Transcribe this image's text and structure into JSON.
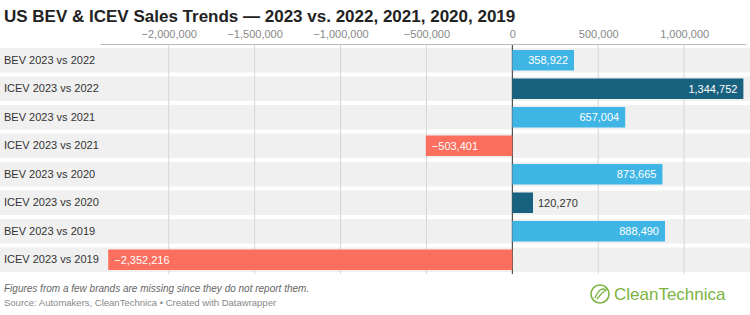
{
  "chart_data": {
    "type": "bar",
    "orientation": "horizontal",
    "title": "US BEV & ICEV Sales Trends — 2023 vs. 2022, 2021, 2020, 2019",
    "categories": [
      "BEV 2023 vs 2022",
      "ICEV 2023 vs 2022",
      "BEV 2023 vs 2021",
      "ICEV 2023 vs 2021",
      "BEV 2023 vs 2020",
      "ICEV 2023 vs 2020",
      "BEV 2023 vs 2019",
      "ICEV 2023 vs 2019"
    ],
    "values": [
      358922,
      1344752,
      657004,
      -503401,
      873665,
      120270,
      888490,
      -2352216
    ],
    "value_labels": [
      "358,922",
      "1,344,752",
      "657,004",
      "−503,401",
      "873,665",
      "120,270",
      "888,490",
      "−2,352,216"
    ],
    "colors": [
      "#3fb5e5",
      "#19627f",
      "#3fb5e5",
      "#fc6e5e",
      "#3fb5e5",
      "#19627f",
      "#3fb5e5",
      "#fc6e5e"
    ],
    "data_labels": true,
    "grid": true,
    "xlim": [
      -2400000,
      1360000
    ],
    "xticks": [
      {
        "value": -2000000,
        "label": "−2,000,000"
      },
      {
        "value": -1500000,
        "label": "−1,500,000"
      },
      {
        "value": -1000000,
        "label": "−1,000,000"
      },
      {
        "value": -500000,
        "label": "−500,000"
      },
      0,
      {
        "value": 500000,
        "label": "500,000"
      },
      {
        "value": 1000000,
        "label": "1,000,000"
      }
    ],
    "annotations": [
      "Figures from a few brands are missing since they do not report them.",
      "Source: Automakers, CleanTechnica • Created with Datawrapper",
      "CleanTechnica"
    ]
  }
}
